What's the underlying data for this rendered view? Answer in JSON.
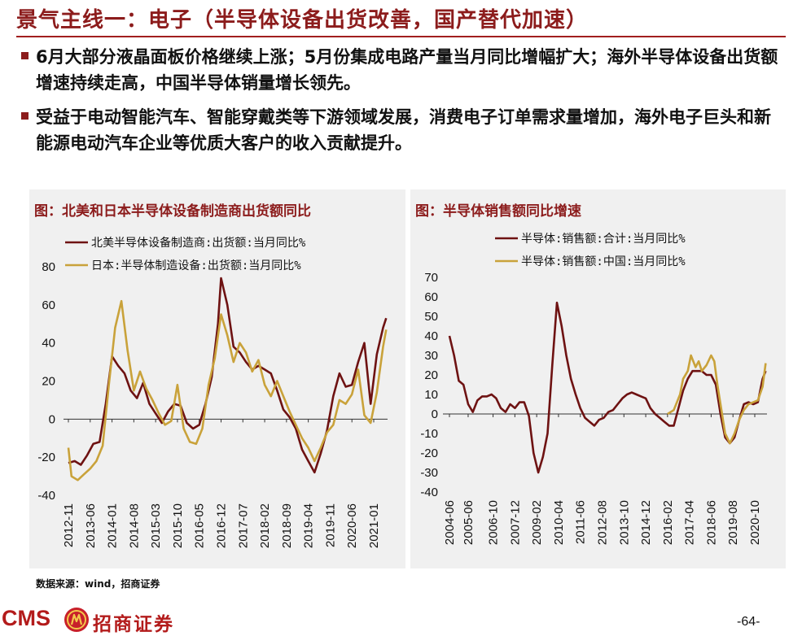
{
  "header": {
    "title": "景气主线一：电子（半导体设备出货改善，国产替代加速）"
  },
  "bullets": [
    "6月大部分液晶面板价格继续上涨；5月份集成电路产量当月同比增幅扩大；海外半导体设备出货额增速持续走高，中国半导体销量增长领先。",
    "受益于电动智能汽车、智能穿戴类等下游领域发展，消费电子订单需求量增加，海外电子巨头和新能源电动汽车企业等优质大客户的收入贡献提升。"
  ],
  "colors": {
    "title": "#8c1c1c",
    "series_dark": "#6e1212",
    "series_gold": "#c9a23a",
    "panel_bg": "#f0f0f0"
  },
  "chart_data": [
    {
      "type": "line",
      "panel_title": "图：北美和日本半导体设备制造商出货额同比",
      "ylim": [
        -40,
        80
      ],
      "yticks": [
        -40,
        -20,
        0,
        20,
        40,
        60,
        80
      ],
      "xticks": [
        "2012-11",
        "2013-06",
        "2014-01",
        "2014-08",
        "2015-03",
        "2015-10",
        "2016-05",
        "2016-12",
        "2017-07",
        "2018-02",
        "2018-09",
        "2019-04",
        "2019-11",
        "2020-06",
        "2021-01"
      ],
      "legend": [
        "北美半导体设备制造商:出货额:当月同比%",
        "日本:半导体制造设备:出货额:当月同比%"
      ],
      "series": [
        {
          "name": "北美半导体设备制造商:出货额:当月同比%",
          "color": "#6e1212",
          "points": [
            [
              "2012-11",
              -23
            ],
            [
              "2013-01",
              -22
            ],
            [
              "2013-03",
              -24
            ],
            [
              "2013-05",
              -19
            ],
            [
              "2013-07",
              -13
            ],
            [
              "2013-09",
              -12
            ],
            [
              "2013-11",
              8
            ],
            [
              "2014-01",
              33
            ],
            [
              "2014-03",
              28
            ],
            [
              "2014-05",
              24
            ],
            [
              "2014-07",
              15
            ],
            [
              "2014-09",
              11
            ],
            [
              "2014-11",
              19
            ],
            [
              "2015-01",
              8
            ],
            [
              "2015-03",
              3
            ],
            [
              "2015-05",
              -2
            ],
            [
              "2015-07",
              4
            ],
            [
              "2015-09",
              8
            ],
            [
              "2015-11",
              7
            ],
            [
              "2016-01",
              -2
            ],
            [
              "2016-03",
              -5
            ],
            [
              "2016-05",
              -3
            ],
            [
              "2016-07",
              8
            ],
            [
              "2016-09",
              22
            ],
            [
              "2016-11",
              50
            ],
            [
              "2016-12",
              74
            ],
            [
              "2017-02",
              60
            ],
            [
              "2017-04",
              38
            ],
            [
              "2017-06",
              35
            ],
            [
              "2017-08",
              30
            ],
            [
              "2017-10",
              26
            ],
            [
              "2017-12",
              28
            ],
            [
              "2018-02",
              26
            ],
            [
              "2018-04",
              24
            ],
            [
              "2018-06",
              15
            ],
            [
              "2018-08",
              5
            ],
            [
              "2018-10",
              1
            ],
            [
              "2018-12",
              -5
            ],
            [
              "2019-02",
              -16
            ],
            [
              "2019-04",
              -22
            ],
            [
              "2019-06",
              -28
            ],
            [
              "2019-08",
              -18
            ],
            [
              "2019-10",
              -6
            ],
            [
              "2019-12",
              12
            ],
            [
              "2020-02",
              24
            ],
            [
              "2020-04",
              17
            ],
            [
              "2020-06",
              18
            ],
            [
              "2020-08",
              30
            ],
            [
              "2020-10",
              40
            ],
            [
              "2020-12",
              8
            ],
            [
              "2021-02",
              34
            ],
            [
              "2021-04",
              48
            ],
            [
              "2021-05",
              53
            ]
          ]
        },
        {
          "name": "日本:半导体制造设备:出货额:当月同比%",
          "color": "#c9a23a",
          "points": [
            [
              "2012-11",
              -15
            ],
            [
              "2012-12",
              -30
            ],
            [
              "2013-02",
              -32
            ],
            [
              "2013-04",
              -29
            ],
            [
              "2013-06",
              -26
            ],
            [
              "2013-08",
              -22
            ],
            [
              "2013-10",
              -14
            ],
            [
              "2013-12",
              18
            ],
            [
              "2014-02",
              48
            ],
            [
              "2014-04",
              62
            ],
            [
              "2014-06",
              36
            ],
            [
              "2014-08",
              15
            ],
            [
              "2014-10",
              25
            ],
            [
              "2014-12",
              16
            ],
            [
              "2015-02",
              10
            ],
            [
              "2015-04",
              3
            ],
            [
              "2015-06",
              -3
            ],
            [
              "2015-08",
              -1
            ],
            [
              "2015-10",
              18
            ],
            [
              "2015-12",
              -5
            ],
            [
              "2016-02",
              -12
            ],
            [
              "2016-04",
              -13
            ],
            [
              "2016-06",
              -5
            ],
            [
              "2016-08",
              18
            ],
            [
              "2016-10",
              32
            ],
            [
              "2016-12",
              55
            ],
            [
              "2017-02",
              44
            ],
            [
              "2017-04",
              30
            ],
            [
              "2017-06",
              40
            ],
            [
              "2017-08",
              35
            ],
            [
              "2017-10",
              25
            ],
            [
              "2017-12",
              31
            ],
            [
              "2018-02",
              18
            ],
            [
              "2018-04",
              12
            ],
            [
              "2018-06",
              20
            ],
            [
              "2018-08",
              12
            ],
            [
              "2018-10",
              4
            ],
            [
              "2018-12",
              -3
            ],
            [
              "2019-02",
              -10
            ],
            [
              "2019-04",
              -15
            ],
            [
              "2019-06",
              -22
            ],
            [
              "2019-08",
              -15
            ],
            [
              "2019-10",
              -7
            ],
            [
              "2019-12",
              -3
            ],
            [
              "2020-02",
              10
            ],
            [
              "2020-04",
              8
            ],
            [
              "2020-06",
              13
            ],
            [
              "2020-08",
              26
            ],
            [
              "2020-10",
              2
            ],
            [
              "2020-12",
              -2
            ],
            [
              "2021-02",
              14
            ],
            [
              "2021-04",
              38
            ],
            [
              "2021-05",
              47
            ]
          ]
        }
      ]
    },
    {
      "type": "line",
      "panel_title": "图：半导体销售额同比增速",
      "ylim": [
        -40,
        70
      ],
      "yticks": [
        -40,
        -30,
        -20,
        -10,
        0,
        10,
        20,
        30,
        40,
        50,
        60,
        70
      ],
      "xticks": [
        "2004-06",
        "2005-06",
        "2006-10",
        "2007-12",
        "2009-02",
        "2010-04",
        "2011-06",
        "2012-08",
        "2013-10",
        "2014-12",
        "2016-02",
        "2017-04",
        "2018-06",
        "2019-08",
        "2020-10"
      ],
      "legend": [
        "半导体:销售额:合计:当月同比%",
        "半导体:销售额:中国:当月同比%"
      ],
      "series": [
        {
          "name": "半导体:销售额:合计:当月同比%",
          "color": "#6e1212",
          "points": [
            [
              "2004-06",
              40
            ],
            [
              "2004-09",
              30
            ],
            [
              "2004-12",
              17
            ],
            [
              "2005-03",
              15
            ],
            [
              "2005-06",
              5
            ],
            [
              "2005-09",
              1
            ],
            [
              "2005-12",
              7
            ],
            [
              "2006-03",
              9
            ],
            [
              "2006-06",
              9
            ],
            [
              "2006-09",
              10
            ],
            [
              "2006-12",
              8
            ],
            [
              "2007-03",
              3
            ],
            [
              "2007-06",
              1
            ],
            [
              "2007-09",
              5
            ],
            [
              "2007-12",
              3
            ],
            [
              "2008-03",
              6
            ],
            [
              "2008-06",
              6
            ],
            [
              "2008-09",
              -1
            ],
            [
              "2008-12",
              -20
            ],
            [
              "2009-03",
              -30
            ],
            [
              "2009-06",
              -22
            ],
            [
              "2009-09",
              -10
            ],
            [
              "2009-12",
              25
            ],
            [
              "2010-03",
              57
            ],
            [
              "2010-06",
              45
            ],
            [
              "2010-09",
              30
            ],
            [
              "2010-12",
              18
            ],
            [
              "2011-03",
              10
            ],
            [
              "2011-06",
              3
            ],
            [
              "2011-09",
              -2
            ],
            [
              "2011-12",
              -4
            ],
            [
              "2012-03",
              -6
            ],
            [
              "2012-06",
              -3
            ],
            [
              "2012-09",
              -2
            ],
            [
              "2012-12",
              1
            ],
            [
              "2013-03",
              2
            ],
            [
              "2013-06",
              5
            ],
            [
              "2013-09",
              8
            ],
            [
              "2013-12",
              10
            ],
            [
              "2014-03",
              11
            ],
            [
              "2014-06",
              10
            ],
            [
              "2014-09",
              9
            ],
            [
              "2014-12",
              8
            ],
            [
              "2015-03",
              3
            ],
            [
              "2015-06",
              0
            ],
            [
              "2015-09",
              -2
            ],
            [
              "2015-12",
              -4
            ],
            [
              "2016-03",
              -6
            ],
            [
              "2016-06",
              -6
            ],
            [
              "2016-09",
              3
            ],
            [
              "2016-12",
              12
            ],
            [
              "2017-03",
              18
            ],
            [
              "2017-06",
              22
            ],
            [
              "2017-09",
              22
            ],
            [
              "2017-12",
              22
            ],
            [
              "2018-03",
              20
            ],
            [
              "2018-06",
              20
            ],
            [
              "2018-09",
              15
            ],
            [
              "2018-12",
              0
            ],
            [
              "2019-03",
              -12
            ],
            [
              "2019-06",
              -15
            ],
            [
              "2019-09",
              -12
            ],
            [
              "2019-12",
              -3
            ],
            [
              "2020-03",
              5
            ],
            [
              "2020-06",
              6
            ],
            [
              "2020-09",
              5
            ],
            [
              "2020-12",
              6
            ],
            [
              "2021-03",
              18
            ],
            [
              "2021-05",
              22
            ]
          ]
        },
        {
          "name": "半导体:销售额:中国:当月同比%",
          "color": "#c9a23a",
          "points": [
            [
              "2016-02",
              0
            ],
            [
              "2016-06",
              2
            ],
            [
              "2016-10",
              10
            ],
            [
              "2016-12",
              18
            ],
            [
              "2017-03",
              22
            ],
            [
              "2017-05",
              30
            ],
            [
              "2017-08",
              24
            ],
            [
              "2017-10",
              27
            ],
            [
              "2017-12",
              22
            ],
            [
              "2018-03",
              25
            ],
            [
              "2018-06",
              30
            ],
            [
              "2018-08",
              27
            ],
            [
              "2018-10",
              15
            ],
            [
              "2018-12",
              5
            ],
            [
              "2019-03",
              -10
            ],
            [
              "2019-06",
              -15
            ],
            [
              "2019-09",
              -10
            ],
            [
              "2019-12",
              -3
            ],
            [
              "2020-03",
              2
            ],
            [
              "2020-06",
              5
            ],
            [
              "2020-09",
              6
            ],
            [
              "2020-12",
              7
            ],
            [
              "2021-03",
              14
            ],
            [
              "2021-05",
              26
            ]
          ]
        }
      ]
    }
  ],
  "footer": {
    "source": "数据来源：wind，招商证券",
    "logo_latin": "CMS",
    "logo_name": "招商证券",
    "page": "-64-"
  }
}
